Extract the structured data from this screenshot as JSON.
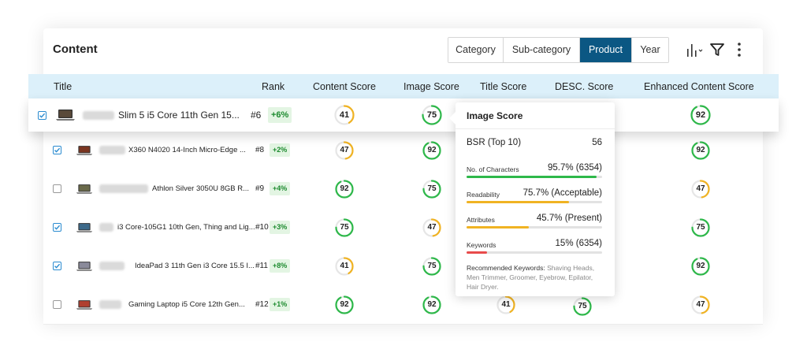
{
  "panel": {
    "title": "Content"
  },
  "tabs": [
    {
      "label": "Category",
      "active": false
    },
    {
      "label": "Sub-category",
      "active": false
    },
    {
      "label": "Product",
      "active": true
    },
    {
      "label": "Year",
      "active": false
    }
  ],
  "toolbar": {
    "icons": [
      "bar-chart-icon",
      "filter-icon",
      "more-vertical-icon"
    ]
  },
  "columns": {
    "title": "Title",
    "rank": "Rank",
    "content": "Content Score",
    "image": "Image Score",
    "title_score": "Title Score",
    "desc": "DESC. Score",
    "enhanced": "Enhanced Content Score"
  },
  "colors": {
    "green": "#2eb84a",
    "yellow": "#f0b323",
    "accent": "#0b5783",
    "header_bg": "#dcf0fa"
  },
  "rows": [
    {
      "checked": true,
      "name": "Slim 5  i5 Core 11th Gen 15...",
      "rank": "#6",
      "delta": "+6%",
      "content": "41",
      "image": "75",
      "title_score": "",
      "desc": "",
      "enhanced": "92"
    },
    {
      "checked": true,
      "name": "X360 N4020 14-Inch Micro-Edge ...",
      "rank": "#8",
      "delta": "+2%",
      "content": "47",
      "image": "92",
      "title_score": "",
      "desc": "",
      "enhanced": "92"
    },
    {
      "checked": false,
      "name": "Athlon Silver 3050U 8GB R...",
      "rank": "#9",
      "delta": "+4%",
      "content": "92",
      "image": "75",
      "title_score": "",
      "desc": "",
      "enhanced": "47"
    },
    {
      "checked": true,
      "name": "i3 Core-105G1 10th Gen, Thing and Lig...",
      "rank": "#10",
      "delta": "+3%",
      "content": "75",
      "image": "47",
      "title_score": "",
      "desc": "",
      "enhanced": "75"
    },
    {
      "checked": true,
      "name": "IdeaPad 3 11th Gen i3 Core 15.5 I...",
      "rank": "#11",
      "delta": "+8%",
      "content": "41",
      "image": "75",
      "title_score": "",
      "desc": "",
      "enhanced": "92"
    },
    {
      "checked": false,
      "name": "Gaming Laptop i5 Core 12th Gen...",
      "rank": "#12",
      "delta": "+1%",
      "content": "92",
      "image": "92",
      "title_score": "41",
      "desc": "75",
      "enhanced": "47"
    }
  ],
  "tooltip": {
    "title": "Image Score",
    "bsr_label": "BSR (Top 10)",
    "bsr_value": "56",
    "metrics": [
      {
        "label": "No. of Characters",
        "value": "95.7% (6354)",
        "percent": 95.7,
        "color": "#2eb84a"
      },
      {
        "label": "Readability",
        "value": "75.7% (Acceptable)",
        "percent": 75.7,
        "color": "#f0b323"
      },
      {
        "label": "Attributes",
        "value": "45.7% (Present)",
        "percent": 45.7,
        "color": "#f0b323"
      },
      {
        "label": "Keywords",
        "value": "15% (6354)",
        "percent": 15,
        "color": "#e84b4b"
      }
    ],
    "recommended_label": "Recommended Keywords:",
    "recommended_list": "Shaving Heads, Men Trimmer, Groomer, Eyebrow, Epilator, Hair Dryer."
  }
}
